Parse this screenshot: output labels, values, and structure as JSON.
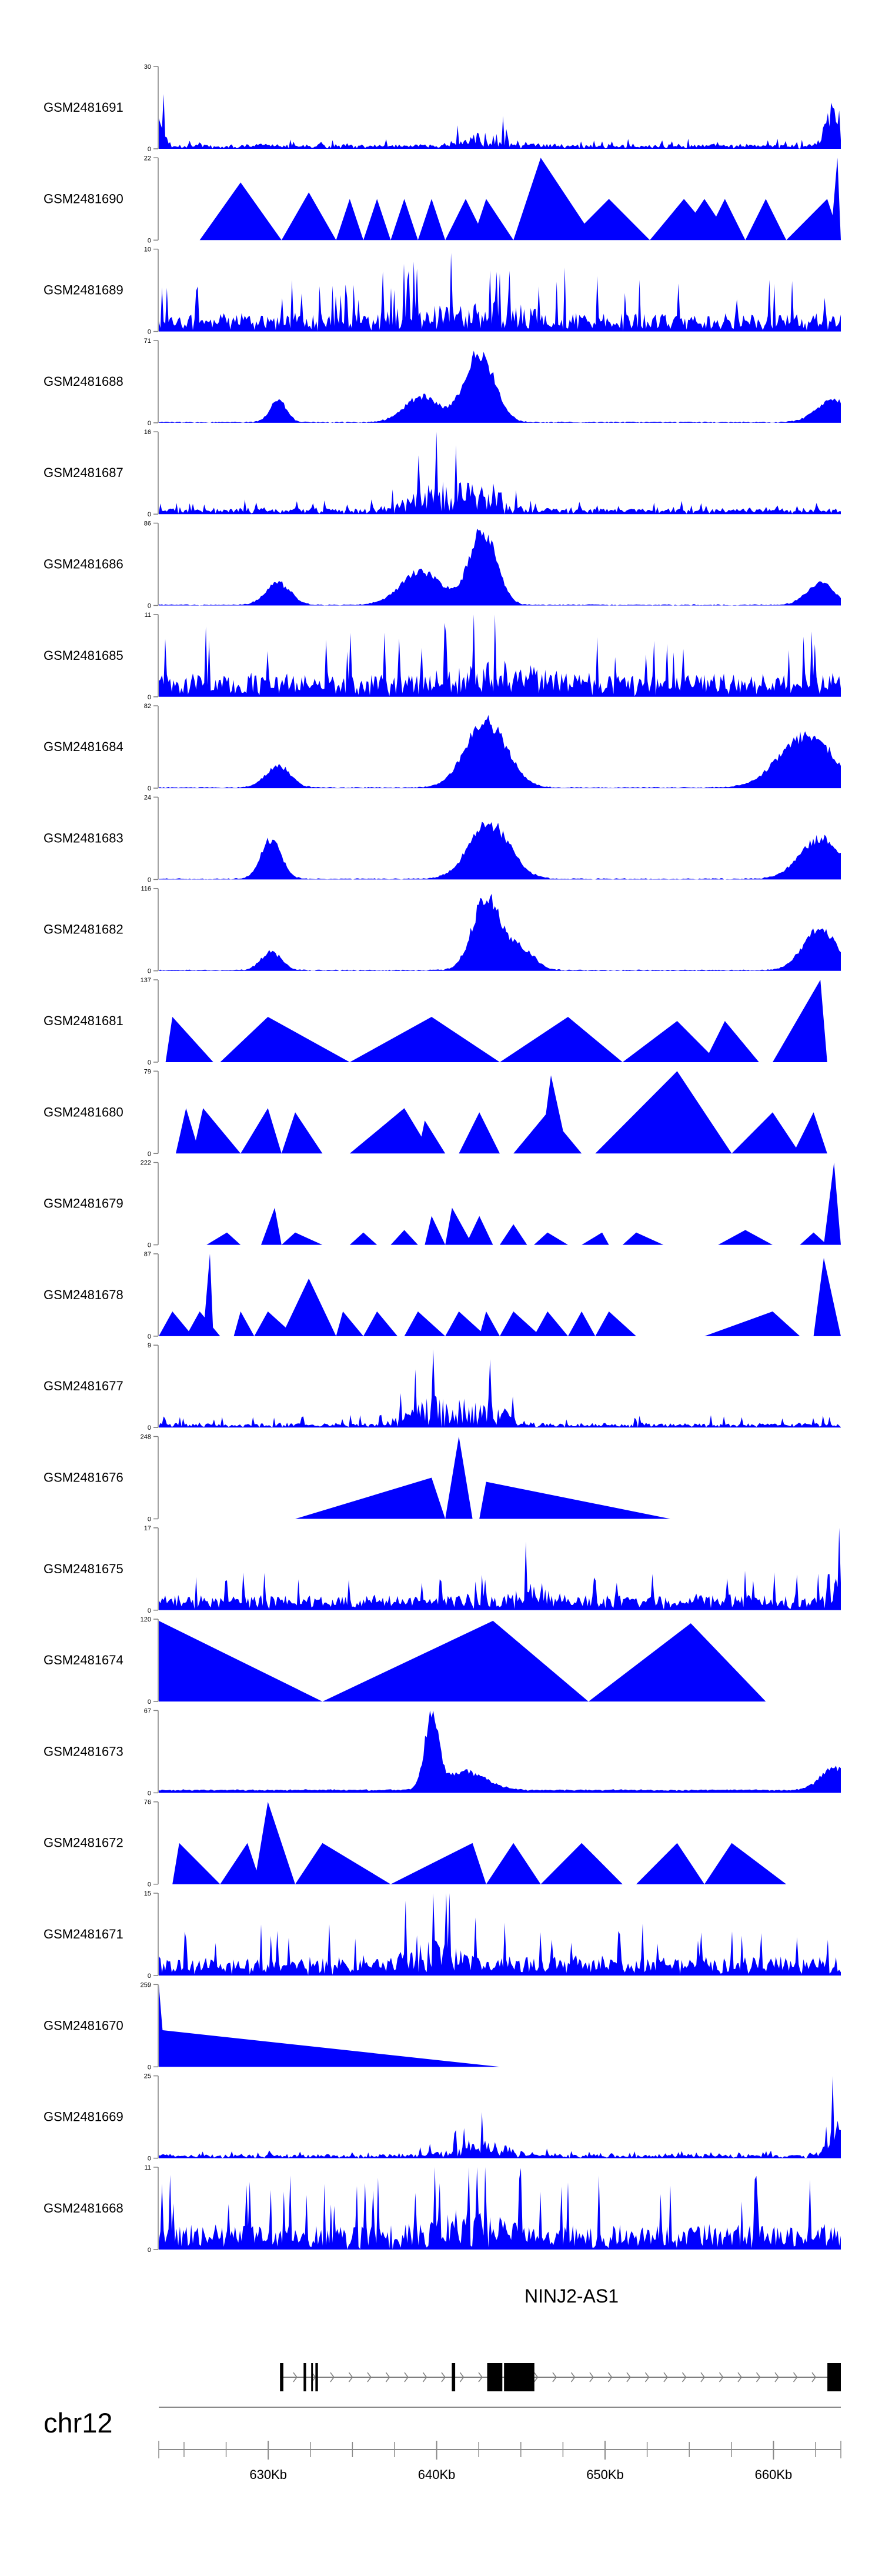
{
  "chart_data": {
    "type": "area",
    "title": "",
    "fill_color": "#0000ff",
    "axis_color": "#808080",
    "track_names": [
      "GSM2481691",
      "GSM2481690",
      "GSM2481689",
      "GSM2481688",
      "GSM2481687",
      "GSM2481686",
      "GSM2481685",
      "GSM2481684",
      "GSM2481683",
      "GSM2481682",
      "GSM2481681",
      "GSM2481680",
      "GSM2481679",
      "GSM2481678",
      "GSM2481677",
      "GSM2481676",
      "GSM2481675",
      "GSM2481674",
      "GSM2481673",
      "GSM2481672",
      "GSM2481671",
      "GSM2481670",
      "GSM2481669",
      "GSM2481668"
    ],
    "track_ymax": [
      "30",
      "22",
      "10",
      "71",
      "16",
      "86",
      "11",
      "82",
      "24",
      "116",
      "137",
      "79",
      "222",
      "87",
      "9",
      "248",
      "17",
      "120",
      "67",
      "76",
      "15",
      "259",
      "25",
      "11"
    ],
    "track_ymin": "0",
    "x_range_kb": [
      623.5,
      664
    ],
    "x_ticks": [
      {
        "kb": 630,
        "label": "630Kb"
      },
      {
        "kb": 640,
        "label": "640Kb"
      },
      {
        "kb": 650,
        "label": "650Kb"
      },
      {
        "kb": 660,
        "label": "660Kb"
      }
    ],
    "minor_tick_step_kb": 2.5,
    "chromosome": "chr12",
    "gene": {
      "name": "NINJ2-AS1",
      "start_kb": 630.7,
      "end_kb": 664,
      "strand": "+",
      "exons": [
        [
          630.7,
          630.9
        ],
        [
          632.1,
          632.25
        ],
        [
          632.55,
          632.65
        ],
        [
          632.8,
          632.95
        ],
        [
          640.9,
          641.1
        ],
        [
          643.0,
          643.9
        ],
        [
          644.0,
          645.8
        ],
        [
          663.2,
          664.0
        ]
      ]
    }
  }
}
